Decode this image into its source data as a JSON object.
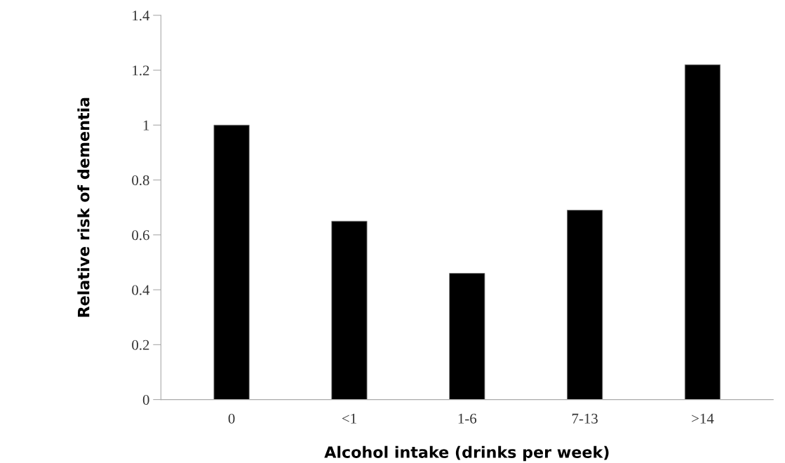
{
  "chart_data": {
    "type": "bar",
    "xlabel": "Alcohol intake (drinks per week)",
    "ylabel": "Relative risk of dementia",
    "categories": [
      "0",
      "<1",
      "1-6",
      "7-13",
      ">14"
    ],
    "values": [
      1.0,
      0.65,
      0.46,
      0.69,
      1.22
    ],
    "color": "#000000",
    "ylim": [
      0,
      1.4
    ],
    "yticks": [
      0,
      0.2,
      0.4,
      0.6,
      0.8,
      1,
      1.2,
      1.4
    ],
    "grid": false,
    "legend": false
  }
}
